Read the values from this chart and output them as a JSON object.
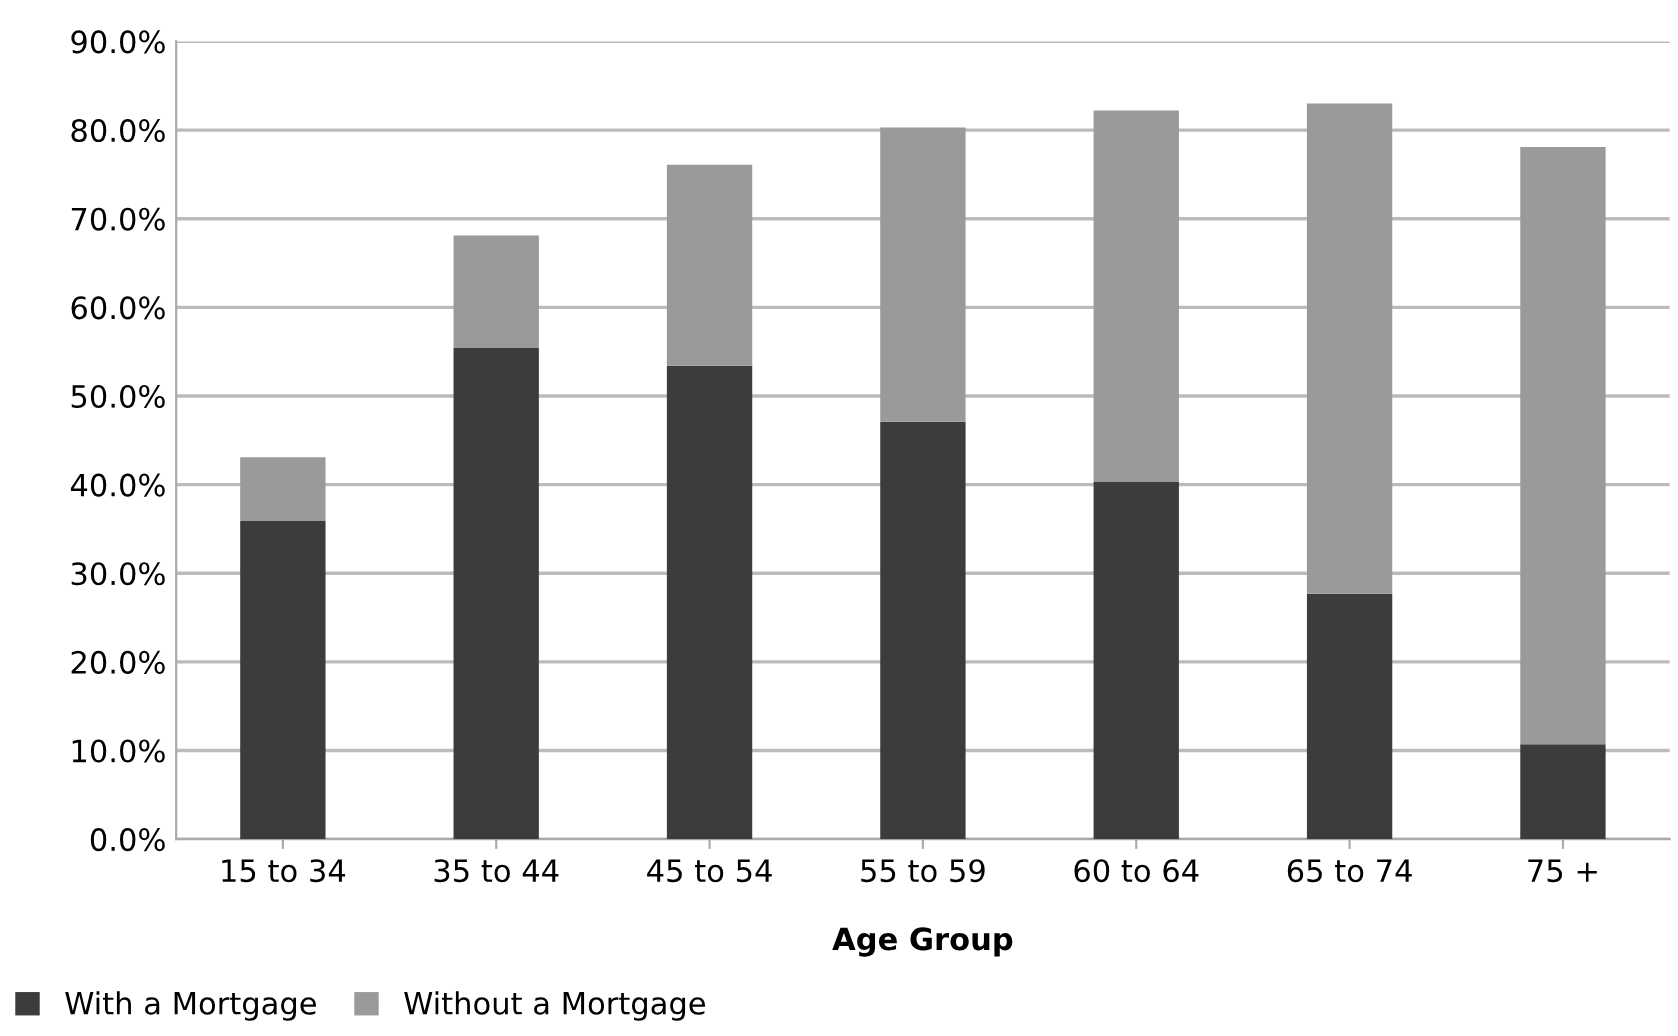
{
  "chart_data": {
    "type": "bar",
    "stacked": true,
    "xlabel": "Age Group",
    "categories": [
      "15 to 34",
      "35 to 44",
      "45 to 54",
      "55 to 59",
      "60 to 64",
      "65 to 74",
      "75 +"
    ],
    "series": [
      {
        "name": "With a Mortgage",
        "color": "#3c3c3c",
        "values": [
          35.9,
          55.4,
          53.4,
          47.1,
          40.3,
          27.7,
          10.7
        ]
      },
      {
        "name": "Without a Mortgage",
        "color": "#9a9a9a",
        "values": [
          7.2,
          12.7,
          22.7,
          33.2,
          41.9,
          55.3,
          67.4
        ]
      }
    ],
    "ylim": [
      0,
      90
    ],
    "yticks": [
      {
        "value": 0,
        "label": "0.0%"
      },
      {
        "value": 10,
        "label": "10.0%"
      },
      {
        "value": 20,
        "label": "20.0%"
      },
      {
        "value": 30,
        "label": "30.0%"
      },
      {
        "value": 40,
        "label": "40.0%"
      },
      {
        "value": 50,
        "label": "50.0%"
      },
      {
        "value": 60,
        "label": "60.0%"
      },
      {
        "value": 70,
        "label": "70.0%"
      },
      {
        "value": 80,
        "label": "80.0%"
      },
      {
        "value": 90,
        "label": "90.0%"
      }
    ],
    "grid": "y",
    "legend": "bottom left"
  }
}
